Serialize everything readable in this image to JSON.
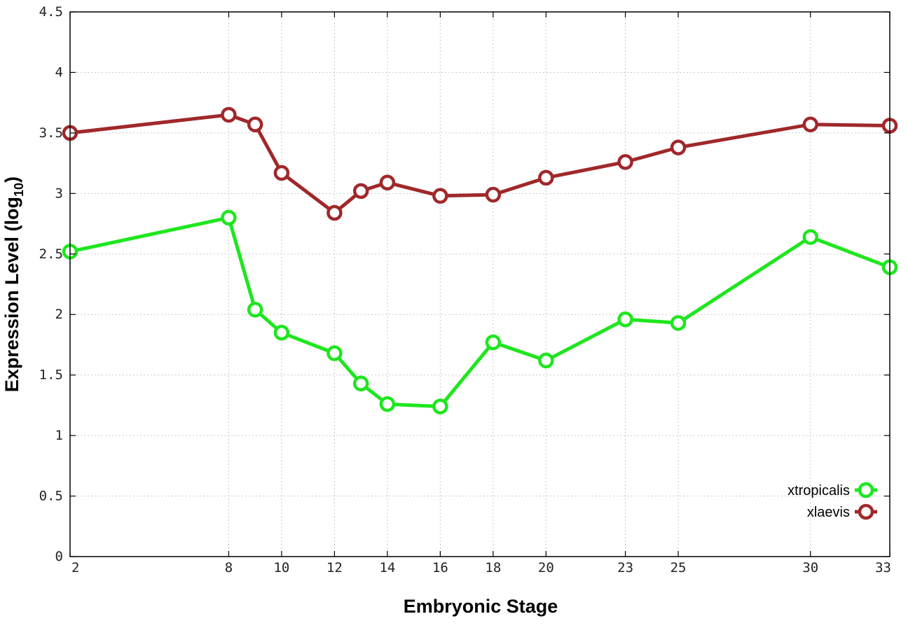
{
  "chart_data": {
    "type": "line",
    "title": "",
    "xlabel": "Embryonic Stage",
    "ylabel_main": "Expression Level (log",
    "ylabel_sub": "10",
    "ylabel_close": ")",
    "xlim": [
      2,
      33
    ],
    "ylim": [
      0,
      4.5
    ],
    "grid": true,
    "legend_position": "bottom-right",
    "x_ticks": [
      2,
      8,
      10,
      12,
      14,
      16,
      18,
      20,
      23,
      25,
      30,
      33
    ],
    "x_tick_labels": [
      "2",
      "8",
      "10",
      "12",
      "14",
      "16",
      "18",
      "20",
      "23",
      "25",
      "30",
      "33"
    ],
    "y_ticks": [
      0,
      0.5,
      1,
      1.5,
      2,
      2.5,
      3,
      3.5,
      4,
      4.5
    ],
    "y_tick_labels": [
      "0",
      "0.5",
      "1",
      "1.5",
      "2",
      "2.5",
      "3",
      "3.5",
      "4",
      "4.5"
    ],
    "x": [
      2,
      8,
      9,
      10,
      12,
      13,
      14,
      16,
      18,
      20,
      23,
      25,
      30,
      33
    ],
    "series": [
      {
        "name": "xtropicalis",
        "color": "#1ee61e",
        "values": [
          2.52,
          2.8,
          2.04,
          1.85,
          1.68,
          1.43,
          1.26,
          1.24,
          1.77,
          1.62,
          1.96,
          1.93,
          2.64,
          2.39
        ]
      },
      {
        "name": "xlaevis",
        "color": "#a0282a",
        "values": [
          3.5,
          3.65,
          3.57,
          3.17,
          2.84,
          3.02,
          3.09,
          2.98,
          2.99,
          3.13,
          3.26,
          3.38,
          3.57,
          3.56
        ]
      }
    ]
  }
}
